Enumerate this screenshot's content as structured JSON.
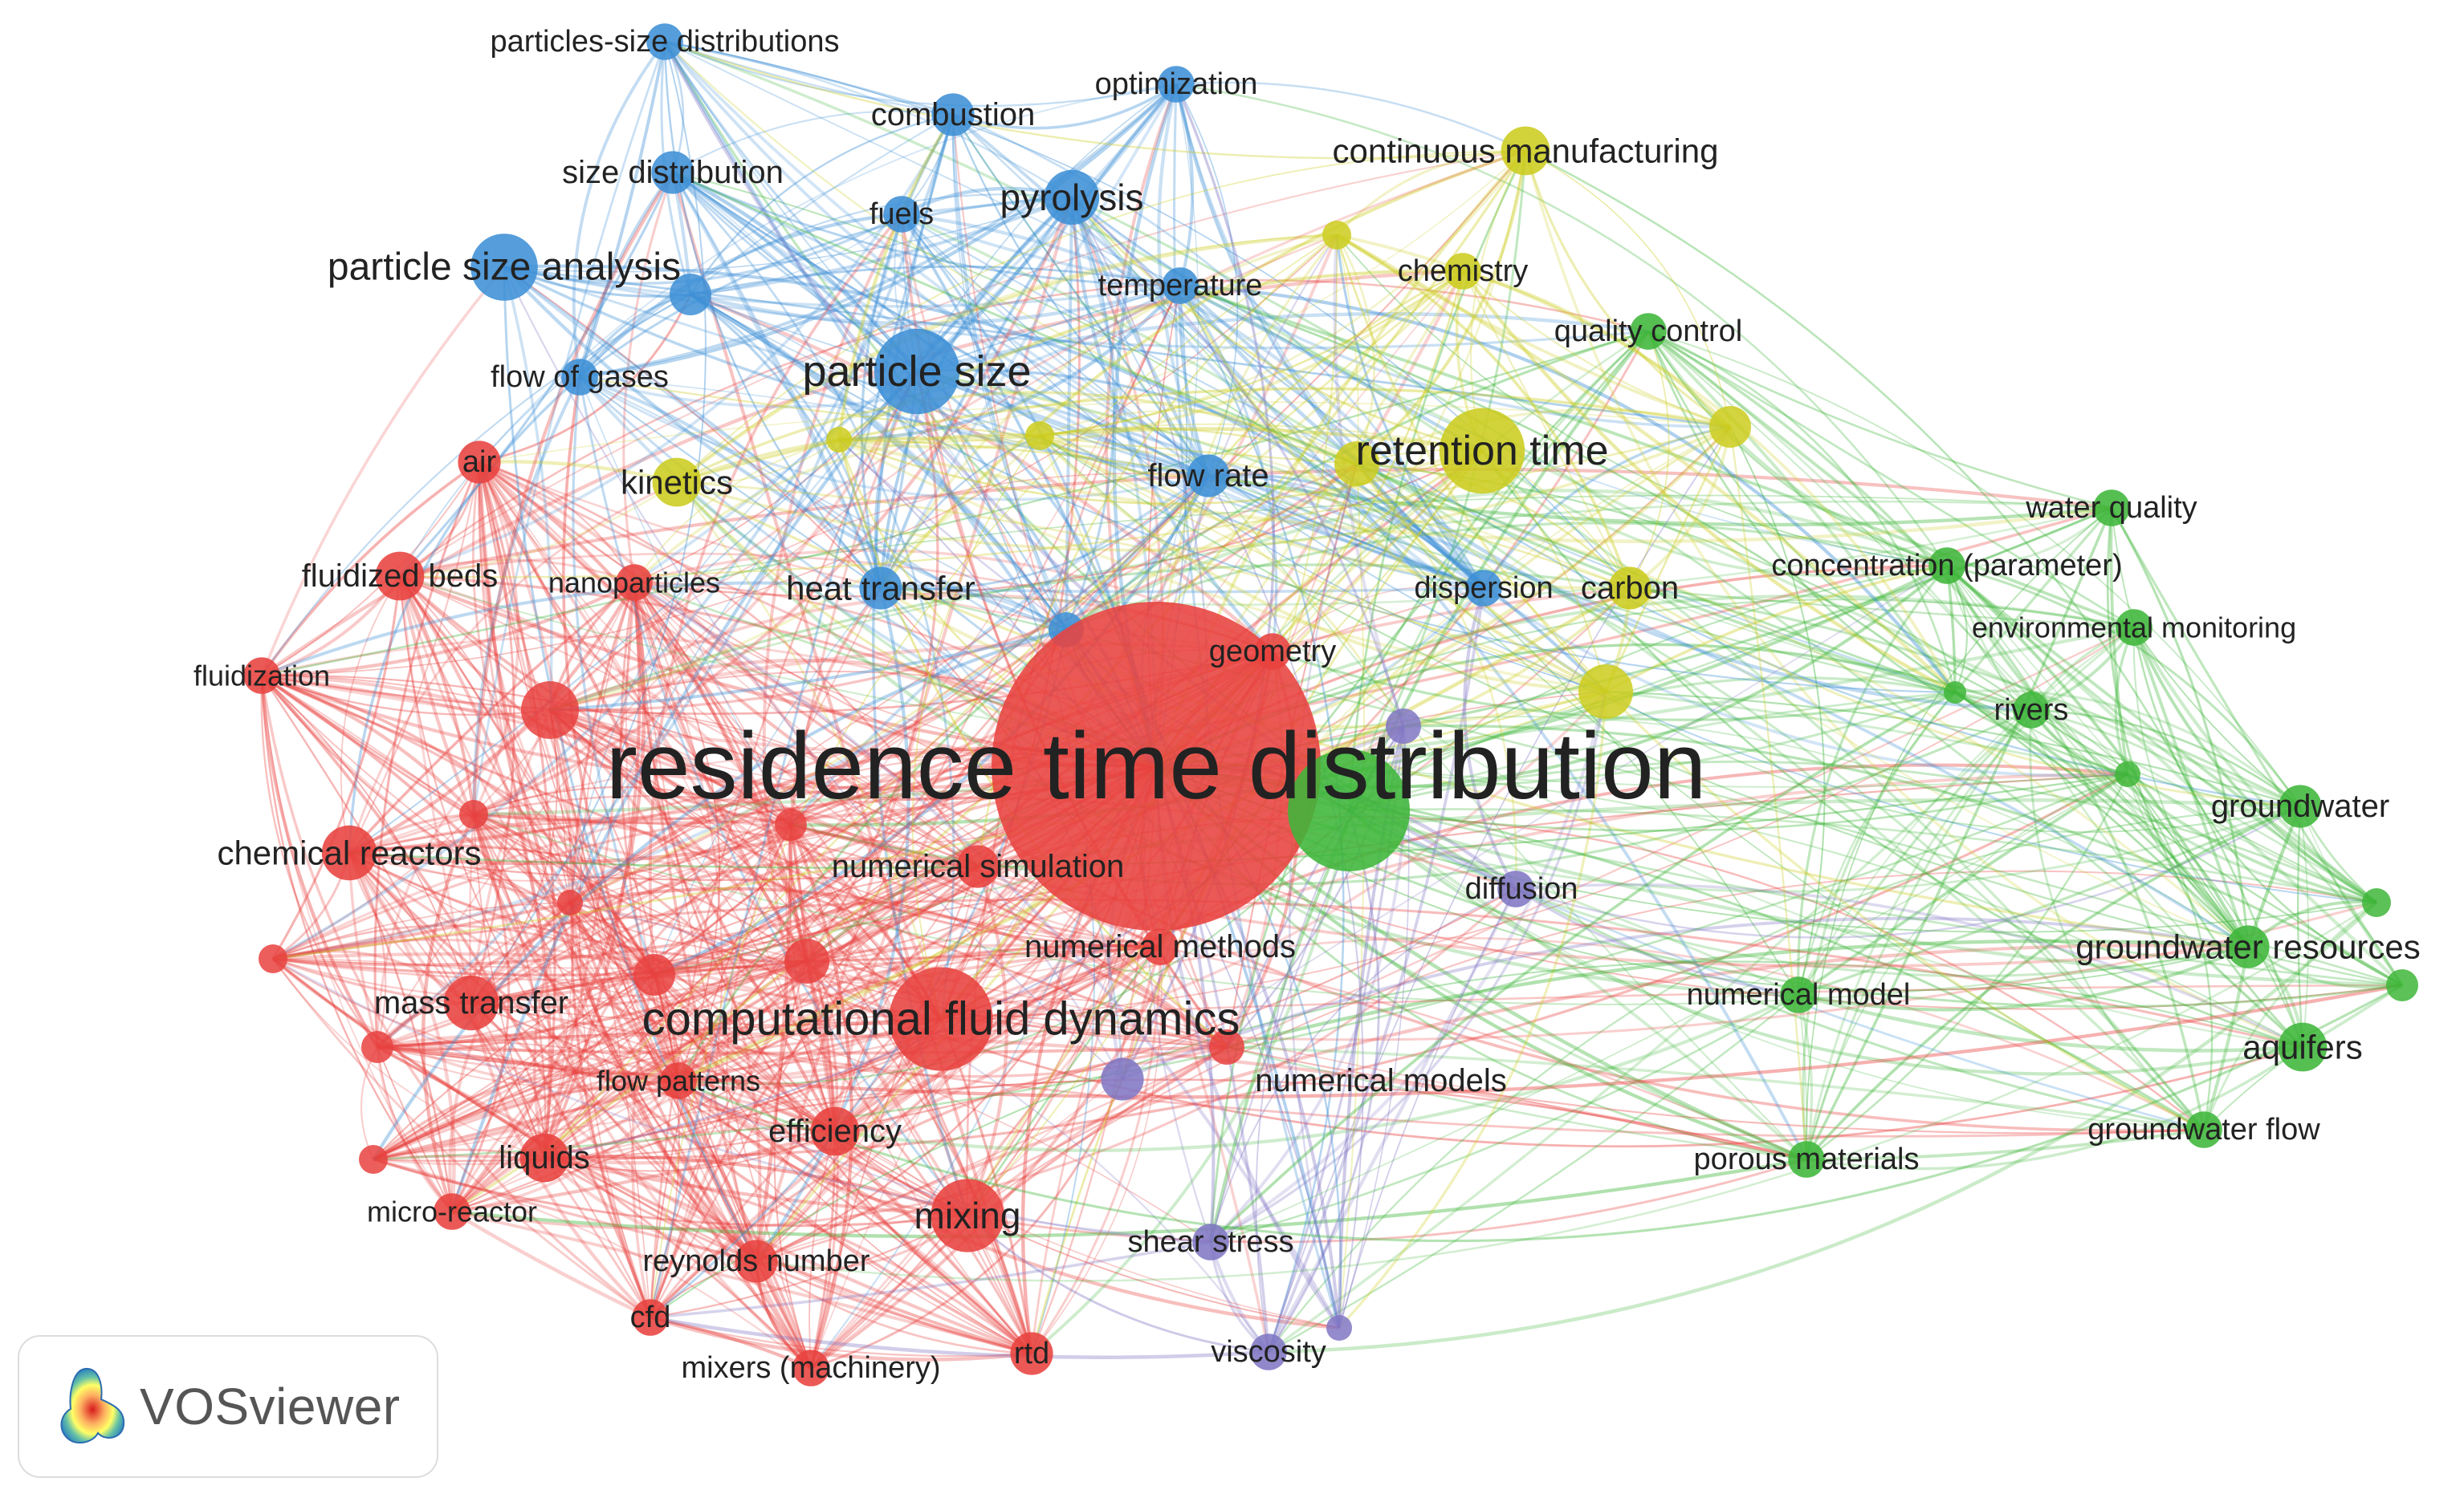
{
  "clusters": {
    "red": "#e8423f",
    "green": "#3fb63a",
    "blue": "#3d8fd6",
    "yellow": "#cccc1f",
    "purple": "#8177c4"
  },
  "badge": {
    "text": "VOSviewer"
  },
  "nodes": [
    {
      "id": "rtd_main",
      "label": "residence time distribution",
      "cluster": "red",
      "size": 100
    },
    {
      "id": "cfd_big",
      "label": "computational fluid dynamics",
      "cluster": "red",
      "size": 34
    },
    {
      "id": "mixing",
      "label": "mixing",
      "cluster": "red",
      "size": 24
    },
    {
      "id": "chemical_reactors",
      "label": "chemical reactors",
      "cluster": "red",
      "size": 18
    },
    {
      "id": "mass_transfer",
      "label": "mass transfer",
      "cluster": "red",
      "size": 18
    },
    {
      "id": "liquids",
      "label": "liquids",
      "cluster": "red",
      "size": 16
    },
    {
      "id": "efficiency",
      "label": "efficiency",
      "cluster": "red",
      "size": 16
    },
    {
      "id": "fluidized_beds",
      "label": "fluidized beds",
      "cluster": "red",
      "size": 16
    },
    {
      "id": "air",
      "label": "air",
      "cluster": "red",
      "size": 14
    },
    {
      "id": "fluidization",
      "label": "fluidization",
      "cluster": "red",
      "size": 12
    },
    {
      "id": "nanoparticles",
      "label": "nanoparticles",
      "cluster": "red",
      "size": 12
    },
    {
      "id": "flow_patterns",
      "label": "flow patterns",
      "cluster": "red",
      "size": 12
    },
    {
      "id": "micro_reactor",
      "label": "micro-reactor",
      "cluster": "red",
      "size": 12
    },
    {
      "id": "reynolds",
      "label": "reynolds number",
      "cluster": "red",
      "size": 14
    },
    {
      "id": "cfd_small",
      "label": "cfd",
      "cluster": "red",
      "size": 12
    },
    {
      "id": "mixers",
      "label": "mixers (machinery)",
      "cluster": "red",
      "size": 12
    },
    {
      "id": "rtd_small",
      "label": "rtd",
      "cluster": "red",
      "size": 14
    },
    {
      "id": "numerical_simulation",
      "label": "numerical simulation",
      "cluster": "red",
      "size": 14
    },
    {
      "id": "numerical_methods",
      "label": "numerical methods",
      "cluster": "red",
      "size": 12
    },
    {
      "id": "geometry",
      "label": "geometry",
      "cluster": "red",
      "size": 12
    },
    {
      "id": "retention_green",
      "label": "",
      "cluster": "green",
      "size": 40
    },
    {
      "id": "water_quality",
      "label": "water quality",
      "cluster": "green",
      "size": 12
    },
    {
      "id": "concentration",
      "label": "concentration (parameter)",
      "cluster": "green",
      "size": 12
    },
    {
      "id": "env_monitoring",
      "label": "environmental monitoring",
      "cluster": "green",
      "size": 12
    },
    {
      "id": "rivers",
      "label": "rivers",
      "cluster": "green",
      "size": 12
    },
    {
      "id": "groundwater",
      "label": "groundwater",
      "cluster": "green",
      "size": 14
    },
    {
      "id": "gw_resources",
      "label": "groundwater resources",
      "cluster": "green",
      "size": 14
    },
    {
      "id": "aquifers",
      "label": "aquifers",
      "cluster": "green",
      "size": 16
    },
    {
      "id": "gw_flow",
      "label": "groundwater flow",
      "cluster": "green",
      "size": 12
    },
    {
      "id": "numerical_model",
      "label": "numerical model",
      "cluster": "green",
      "size": 12
    },
    {
      "id": "porous_materials",
      "label": "porous materials",
      "cluster": "green",
      "size": 12
    },
    {
      "id": "quality_control",
      "label": "quality control",
      "cluster": "green",
      "size": 12
    },
    {
      "id": "particle_size",
      "label": "particle size",
      "cluster": "blue",
      "size": 28
    },
    {
      "id": "particle_size_analysis",
      "label": "particle size analysis",
      "cluster": "blue",
      "size": 22
    },
    {
      "id": "pyrolysis",
      "label": "pyrolysis",
      "cluster": "blue",
      "size": 18
    },
    {
      "id": "combustion",
      "label": "combustion",
      "cluster": "blue",
      "size": 14
    },
    {
      "id": "size_distribution",
      "label": "size distribution",
      "cluster": "blue",
      "size": 14
    },
    {
      "id": "particles_size_dist",
      "label": "particles-size distributions",
      "cluster": "blue",
      "size": 12
    },
    {
      "id": "optimization",
      "label": "optimization",
      "cluster": "blue",
      "size": 12
    },
    {
      "id": "fuels",
      "label": "fuels",
      "cluster": "blue",
      "size": 12
    },
    {
      "id": "flow_of_gases",
      "label": "flow of gases",
      "cluster": "blue",
      "size": 12
    },
    {
      "id": "flow_rate",
      "label": "flow rate",
      "cluster": "blue",
      "size": 14
    },
    {
      "id": "heat_transfer",
      "label": "heat transfer",
      "cluster": "blue",
      "size": 14
    },
    {
      "id": "temperature",
      "label": "temperature",
      "cluster": "blue",
      "size": 12
    },
    {
      "id": "dispersion",
      "label": "dispersion",
      "cluster": "blue",
      "size": 12
    },
    {
      "id": "retention_time",
      "label": "retention time",
      "cluster": "yellow",
      "size": 28
    },
    {
      "id": "continuous_manufacturing",
      "label": "continuous manufacturing",
      "cluster": "yellow",
      "size": 16
    },
    {
      "id": "chemistry",
      "label": "chemistry",
      "cluster": "yellow",
      "size": 12
    },
    {
      "id": "kinetics",
      "label": "kinetics",
      "cluster": "yellow",
      "size": 16
    },
    {
      "id": "carbon",
      "label": "carbon",
      "cluster": "yellow",
      "size": 14
    },
    {
      "id": "numerical_models",
      "label": "numerical models",
      "cluster": "purple",
      "size": 14
    },
    {
      "id": "diffusion",
      "label": "diffusion",
      "cluster": "purple",
      "size": 12
    },
    {
      "id": "shear_stress",
      "label": "shear stress",
      "cluster": "purple",
      "size": 12
    },
    {
      "id": "viscosity",
      "label": "viscosity",
      "cluster": "purple",
      "size": 12
    }
  ]
}
